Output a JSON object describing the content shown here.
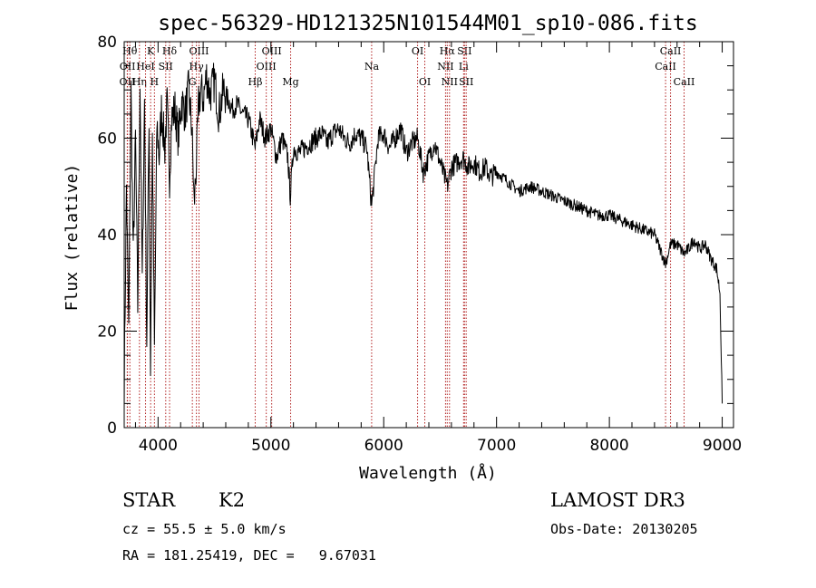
{
  "chart_data": {
    "type": "line",
    "title": "spec-56329-HD121325N101544M01_sp10-086.fits",
    "xlabel": "Wavelength (Å)",
    "ylabel": "Flux (relative)",
    "xlim": [
      3700,
      9100
    ],
    "ylim": [
      0,
      80
    ],
    "xticks": [
      4000,
      5000,
      6000,
      7000,
      8000,
      9000
    ],
    "yticks": [
      0,
      20,
      40,
      60,
      80
    ],
    "series": [
      {
        "name": "flux",
        "color": "#000000",
        "x": [
          3700,
          3720,
          3740,
          3760,
          3780,
          3800,
          3820,
          3840,
          3860,
          3880,
          3900,
          3920,
          3933,
          3950,
          3968,
          3990,
          4010,
          4030,
          4060,
          4080,
          4102,
          4120,
          4150,
          4180,
          4210,
          4240,
          4270,
          4300,
          4320,
          4340,
          4360,
          4380,
          4400,
          4430,
          4460,
          4500,
          4540,
          4580,
          4620,
          4660,
          4700,
          4750,
          4800,
          4861,
          4900,
          4950,
          5000,
          5050,
          5100,
          5150,
          5172,
          5200,
          5250,
          5300,
          5350,
          5400,
          5450,
          5500,
          5550,
          5600,
          5650,
          5700,
          5750,
          5800,
          5850,
          5893,
          5950,
          6000,
          6050,
          6100,
          6150,
          6200,
          6250,
          6300,
          6350,
          6400,
          6450,
          6500,
          6563,
          6600,
          6650,
          6700,
          6750,
          6800,
          6850,
          6900,
          6950,
          7000,
          7100,
          7200,
          7300,
          7400,
          7500,
          7600,
          7700,
          7800,
          7900,
          8000,
          8100,
          8200,
          8300,
          8400,
          8498,
          8542,
          8600,
          8662,
          8700,
          8750,
          8800,
          8850,
          8900,
          8950,
          8980,
          9000
        ],
        "values": [
          8,
          50,
          20,
          70,
          35,
          60,
          25,
          72,
          30,
          68,
          18,
          65,
          12,
          60,
          16,
          63,
          56,
          66,
          58,
          67,
          52,
          64,
          66,
          60,
          68,
          65,
          70,
          62,
          46,
          55,
          67,
          70,
          68,
          73,
          69,
          72,
          65,
          70,
          68,
          66,
          67,
          65,
          64,
          58,
          64,
          60,
          62,
          56,
          60,
          56,
          48,
          58,
          57,
          58,
          59,
          60,
          61,
          59,
          61,
          62,
          60,
          59,
          61,
          60,
          58,
          46,
          60,
          61,
          58,
          60,
          62,
          57,
          59,
          60,
          53,
          56,
          59,
          55,
          50,
          54,
          55,
          56,
          54,
          55,
          53,
          54,
          52,
          53,
          51,
          49,
          50,
          49,
          48,
          47,
          46,
          45,
          44,
          44,
          43,
          42,
          41,
          40,
          34,
          38,
          38,
          36,
          37,
          39,
          37,
          38,
          35,
          33,
          28,
          5
        ]
      }
    ],
    "lines": [
      {
        "name": "OII",
        "wl": 3727,
        "row": 2
      },
      {
        "name": "Hθ",
        "wl": 3750,
        "row": 0
      },
      {
        "name": "OII",
        "wl": 3729,
        "row": 1
      },
      {
        "name": "Hη",
        "wl": 3835,
        "row": 2
      },
      {
        "name": "HeI",
        "wl": 3889,
        "row": 1
      },
      {
        "name": "K",
        "wl": 3934,
        "row": 0
      },
      {
        "name": "H",
        "wl": 3968,
        "row": 2
      },
      {
        "name": "SII",
        "wl": 4068,
        "row": 1
      },
      {
        "name": "Hδ",
        "wl": 4102,
        "row": 0
      },
      {
        "name": "G",
        "wl": 4304,
        "row": 2
      },
      {
        "name": "Hγ",
        "wl": 4340,
        "row": 1
      },
      {
        "name": "OIII",
        "wl": 4363,
        "row": 0
      },
      {
        "name": "Hβ",
        "wl": 4861,
        "row": 2
      },
      {
        "name": "OIII",
        "wl": 4959,
        "row": 1
      },
      {
        "name": "OIII",
        "wl": 5007,
        "row": 0
      },
      {
        "name": "Mg",
        "wl": 5175,
        "row": 2
      },
      {
        "name": "Na",
        "wl": 5893,
        "row": 1
      },
      {
        "name": "OI",
        "wl": 6300,
        "row": 0
      },
      {
        "name": "OI",
        "wl": 6364,
        "row": 2
      },
      {
        "name": "NII",
        "wl": 6548,
        "row": 1
      },
      {
        "name": "Hα",
        "wl": 6563,
        "row": 0
      },
      {
        "name": "NII",
        "wl": 6583,
        "row": 2
      },
      {
        "name": "Li",
        "wl": 6708,
        "row": 1
      },
      {
        "name": "SII",
        "wl": 6716,
        "row": 0
      },
      {
        "name": "SII",
        "wl": 6731,
        "row": 2
      },
      {
        "name": "CaII",
        "wl": 8498,
        "row": 1
      },
      {
        "name": "CaII",
        "wl": 8542,
        "row": 0
      },
      {
        "name": "CaII",
        "wl": 8662,
        "row": 2
      }
    ],
    "line_color": "#b22222"
  },
  "info": {
    "class": "STAR",
    "subclass": "K2",
    "cz": "cz = 55.5 ± 5.0 km/s",
    "radec": "RA = 181.25419, DEC =   9.67031",
    "survey": "LAMOST DR3",
    "obsdate": "Obs-Date: 20130205"
  }
}
